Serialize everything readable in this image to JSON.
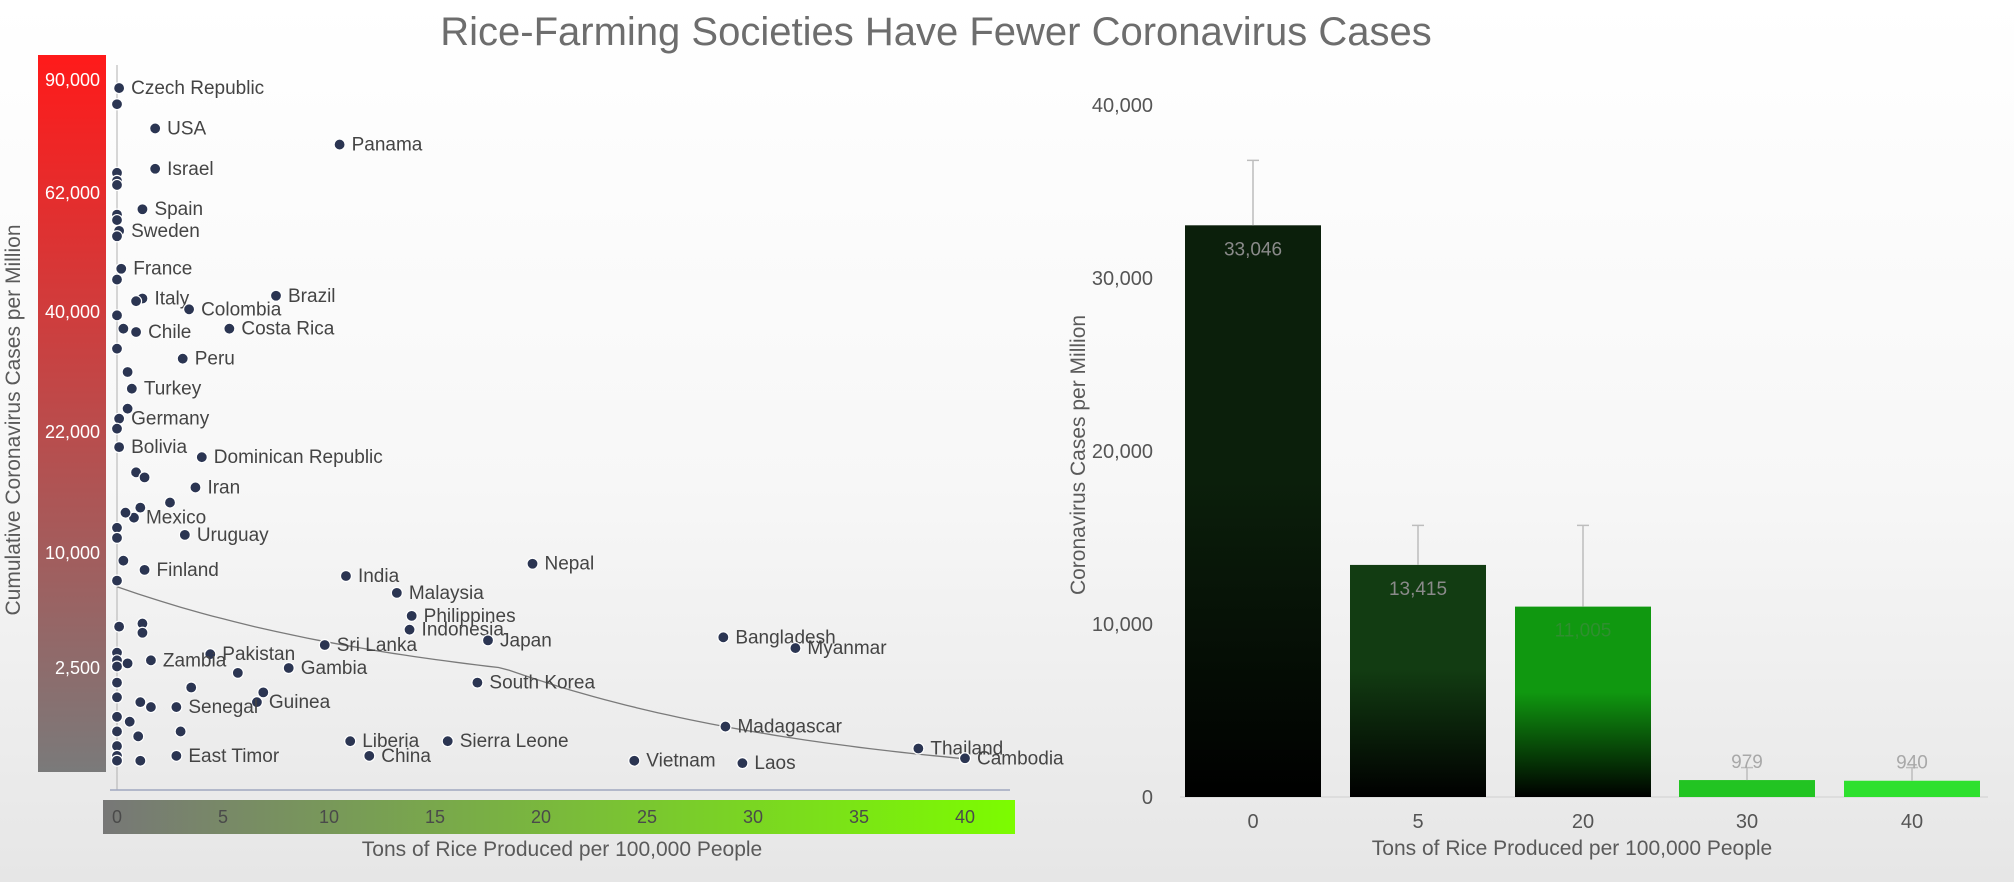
{
  "title": "Rice-Farming Societies Have Fewer Coronavirus Cases",
  "colors": {
    "point": "#2b3552",
    "red_band_top": "#ff1a1a",
    "red_band_bottom": "#7a7a7a",
    "green_band_left": "#777777",
    "green_band_right": "#7cfc00",
    "bar_0": "#0b1f0b",
    "bar_5": "#123c12",
    "bar_20": "#109810",
    "bar_30": "#22c422",
    "bar_40": "#2ee02e",
    "trend": "#7a7a7a",
    "error_bar": "#bdbdbd"
  },
  "chart_data": [
    {
      "type": "scatter",
      "title": "Rice-Farming Societies Have Fewer Coronavirus Cases",
      "xlabel": "Tons of Rice Produced per 100,000 People",
      "ylabel": "Cumulative Coronavirus Cases per Million",
      "xlim": [
        0,
        42
      ],
      "y_scale": "nonlinear",
      "xticks": [
        "0",
        "5",
        "10",
        "15",
        "20",
        "25",
        "30",
        "35",
        "40"
      ],
      "yticks": [
        "90,000",
        "62,000",
        "40,000",
        "22,000",
        "10,000",
        "2,500"
      ],
      "trendline": "decreasing",
      "points": [
        {
          "label": "Czech Republic",
          "x": 0.1,
          "y": 88000
        },
        {
          "label": "",
          "x": 0,
          "y": 84000
        },
        {
          "label": "USA",
          "x": 1.8,
          "y": 78000
        },
        {
          "label": "Panama",
          "x": 10.5,
          "y": 74000
        },
        {
          "label": "Israel",
          "x": 1.8,
          "y": 68000
        },
        {
          "label": "",
          "x": 0,
          "y": 67000
        },
        {
          "label": "",
          "x": 0,
          "y": 65000
        },
        {
          "label": "",
          "x": 0,
          "y": 64000
        },
        {
          "label": "Spain",
          "x": 1.2,
          "y": 59000
        },
        {
          "label": "",
          "x": 0,
          "y": 58000
        },
        {
          "label": "",
          "x": 0,
          "y": 57000
        },
        {
          "label": "Sweden",
          "x": 0.1,
          "y": 55000
        },
        {
          "label": "",
          "x": 0,
          "y": 54000
        },
        {
          "label": "France",
          "x": 0.2,
          "y": 48000
        },
        {
          "label": "",
          "x": 0,
          "y": 46000
        },
        {
          "label": "Italy",
          "x": 1.2,
          "y": 42500
        },
        {
          "label": "",
          "x": 0.9,
          "y": 42000
        },
        {
          "label": "Colombia",
          "x": 3.4,
          "y": 40500
        },
        {
          "label": "Brazil",
          "x": 7.5,
          "y": 43000
        },
        {
          "label": "",
          "x": 0,
          "y": 39500
        },
        {
          "label": "Chile",
          "x": 0.9,
          "y": 37000
        },
        {
          "label": "",
          "x": 0.3,
          "y": 37500
        },
        {
          "label": "Costa Rica",
          "x": 5.3,
          "y": 37500
        },
        {
          "label": "",
          "x": 0,
          "y": 34500
        },
        {
          "label": "Peru",
          "x": 3.1,
          "y": 33000
        },
        {
          "label": "",
          "x": 0.5,
          "y": 31000
        },
        {
          "label": "Turkey",
          "x": 0.7,
          "y": 28500
        },
        {
          "label": "",
          "x": 0.5,
          "y": 25500
        },
        {
          "label": "Germany",
          "x": 0.1,
          "y": 24000
        },
        {
          "label": "",
          "x": 0,
          "y": 22500
        },
        {
          "label": "Bolivia",
          "x": 0.1,
          "y": 20500
        },
        {
          "label": "Dominican Republic",
          "x": 4,
          "y": 19500
        },
        {
          "label": "",
          "x": 0.9,
          "y": 18000
        },
        {
          "label": "",
          "x": 1.3,
          "y": 17500
        },
        {
          "label": "Iran",
          "x": 3.7,
          "y": 16500
        },
        {
          "label": "",
          "x": 2.5,
          "y": 15000
        },
        {
          "label": "",
          "x": 1.1,
          "y": 14500
        },
        {
          "label": "Mexico",
          "x": 0.8,
          "y": 13500
        },
        {
          "label": "",
          "x": 0.4,
          "y": 14000
        },
        {
          "label": "Uruguay",
          "x": 3.2,
          "y": 11800
        },
        {
          "label": "",
          "x": 0,
          "y": 12500
        },
        {
          "label": "",
          "x": 0,
          "y": 11500
        },
        {
          "label": "Nepal",
          "x": 19.6,
          "y": 9300
        },
        {
          "label": "India",
          "x": 10.8,
          "y": 8500
        },
        {
          "label": "Finland",
          "x": 1.3,
          "y": 8900
        },
        {
          "label": "",
          "x": 0.3,
          "y": 9500
        },
        {
          "label": "",
          "x": 0,
          "y": 8200
        },
        {
          "label": "Malaysia",
          "x": 13.2,
          "y": 7400
        },
        {
          "label": "Philippines",
          "x": 13.9,
          "y": 5900
        },
        {
          "label": "Indonesia",
          "x": 13.8,
          "y": 5000
        },
        {
          "label": "Japan",
          "x": 17.5,
          "y": 4300
        },
        {
          "label": "Bangladesh",
          "x": 28.6,
          "y": 4500
        },
        {
          "label": "Myanmar",
          "x": 32,
          "y": 3800
        },
        {
          "label": "Sri Lanka",
          "x": 9.8,
          "y": 4000
        },
        {
          "label": "Pakistan",
          "x": 4.4,
          "y": 3400
        },
        {
          "label": "Zambia",
          "x": 1.6,
          "y": 3000
        },
        {
          "label": "Gambia",
          "x": 8.1,
          "y": 2500
        },
        {
          "label": "South Korea",
          "x": 17,
          "y": 2200
        },
        {
          "label": "",
          "x": 5.7,
          "y": 2400
        },
        {
          "label": "",
          "x": 6.9,
          "y": 2000
        },
        {
          "label": "Guinea",
          "x": 6.6,
          "y": 1800
        },
        {
          "label": "Senegal",
          "x": 2.8,
          "y": 1700
        },
        {
          "label": "",
          "x": 3.5,
          "y": 2100
        },
        {
          "label": "",
          "x": 1.1,
          "y": 1800
        },
        {
          "label": "",
          "x": 1.6,
          "y": 1700
        },
        {
          "label": "Madagascar",
          "x": 28.7,
          "y": 1300
        },
        {
          "label": "Thailand",
          "x": 37.8,
          "y": 850
        },
        {
          "label": "Cambodia",
          "x": 40,
          "y": 650
        },
        {
          "label": "Liberia",
          "x": 11,
          "y": 1000
        },
        {
          "label": "Sierra Leone",
          "x": 15.6,
          "y": 1000
        },
        {
          "label": "China",
          "x": 11.9,
          "y": 700
        },
        {
          "label": "Vietnam",
          "x": 24.4,
          "y": 600
        },
        {
          "label": "Laos",
          "x": 29.5,
          "y": 550
        },
        {
          "label": "East Timor",
          "x": 2.8,
          "y": 700
        },
        {
          "label": "",
          "x": 0,
          "y": 3500
        },
        {
          "label": "",
          "x": 0,
          "y": 3000
        },
        {
          "label": "",
          "x": 0,
          "y": 2600
        },
        {
          "label": "",
          "x": 0,
          "y": 2200
        },
        {
          "label": "",
          "x": 0,
          "y": 1900
        },
        {
          "label": "",
          "x": 0,
          "y": 1500
        },
        {
          "label": "",
          "x": 0,
          "y": 1200
        },
        {
          "label": "",
          "x": 0,
          "y": 900
        },
        {
          "label": "",
          "x": 0,
          "y": 700
        },
        {
          "label": "",
          "x": 0,
          "y": 600
        },
        {
          "label": "",
          "x": 0.5,
          "y": 2800
        },
        {
          "label": "",
          "x": 0.6,
          "y": 1400
        },
        {
          "label": "",
          "x": 1,
          "y": 1100
        },
        {
          "label": "",
          "x": 1.1,
          "y": 600
        },
        {
          "label": "",
          "x": 1.2,
          "y": 5400
        },
        {
          "label": "",
          "x": 1.2,
          "y": 4800
        },
        {
          "label": "",
          "x": 0.1,
          "y": 5200
        },
        {
          "label": "",
          "x": 3,
          "y": 1200
        }
      ]
    },
    {
      "type": "bar",
      "xlabel": "Tons of Rice Produced per 100,000 People",
      "ylabel": "Coronavirus Cases per Million",
      "ylim": [
        0,
        40000
      ],
      "yticks": [
        "0",
        "10,000",
        "20,000",
        "30,000",
        "40,000"
      ],
      "categories": [
        "0",
        "5",
        "20",
        "30",
        "40"
      ],
      "values": [
        33046,
        13415,
        11005,
        979,
        940
      ],
      "value_labels": [
        "33,046",
        "13,415",
        "11,005",
        "979",
        "940"
      ],
      "error_upper": [
        36800,
        15700,
        15700,
        1700,
        1700
      ]
    }
  ]
}
